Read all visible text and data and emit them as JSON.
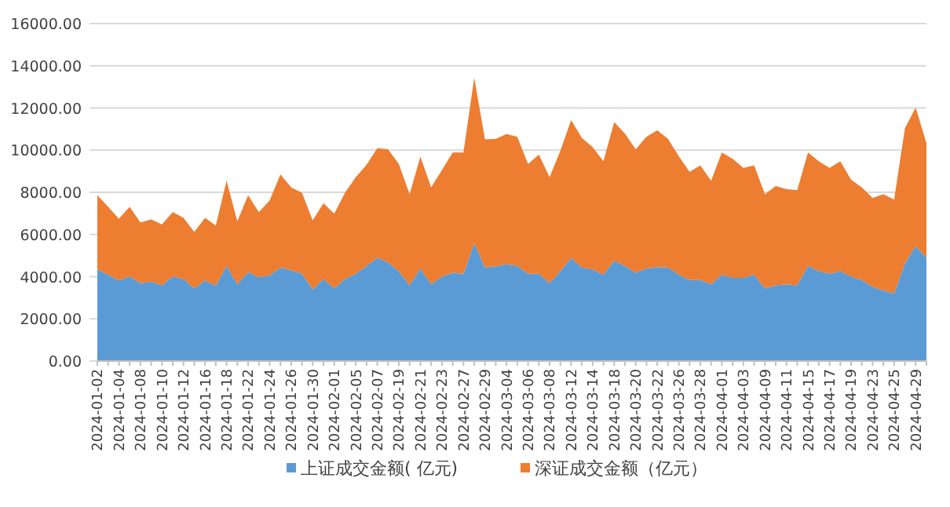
{
  "chart_data": {
    "type": "area",
    "stacked": true,
    "categories": [
      "2024-01-02",
      null,
      "2024-01-04",
      null,
      "2024-01-08",
      null,
      "2024-01-10",
      null,
      "2024-01-12",
      null,
      "2024-01-16",
      null,
      "2024-01-18",
      null,
      "2024-01-22",
      null,
      "2024-01-24",
      null,
      "2024-01-26",
      null,
      "2024-01-30",
      null,
      "2024-02-01",
      null,
      "2024-02-05",
      null,
      "2024-02-07",
      null,
      "2024-02-19",
      null,
      "2024-02-21",
      null,
      "2024-02-23",
      null,
      "2024-02-27",
      null,
      "2024-02-29",
      null,
      "2024-03-04",
      null,
      "2024-03-06",
      null,
      "2024-03-08",
      null,
      "2024-03-12",
      null,
      "2024-03-14",
      null,
      "2024-03-18",
      null,
      "2024-03-20",
      null,
      "2024-03-22",
      null,
      "2024-03-26",
      null,
      "2024-03-28",
      null,
      "2024-04-01",
      null,
      "2024-04-03",
      null,
      "2024-04-09",
      null,
      "2024-04-11",
      null,
      "2024-04-15",
      null,
      "2024-04-17",
      null,
      "2024-04-19",
      null,
      "2024-04-23",
      null,
      "2024-04-25",
      null,
      "2024-04-29",
      null
    ],
    "series": [
      {
        "name": "上证成交金额( 亿元)",
        "color": "#5b9bd5",
        "values": [
          4340,
          4090,
          3820,
          4010,
          3690,
          3770,
          3590,
          4010,
          3890,
          3440,
          3820,
          3570,
          4510,
          3640,
          4210,
          3970,
          4060,
          4440,
          4310,
          4140,
          3400,
          3890,
          3440,
          3890,
          4140,
          4500,
          4900,
          4680,
          4260,
          3590,
          4390,
          3640,
          4010,
          4190,
          4140,
          5580,
          4440,
          4490,
          4590,
          4510,
          4140,
          4140,
          3690,
          4260,
          4880,
          4440,
          4340,
          4090,
          4760,
          4510,
          4190,
          4390,
          4460,
          4440,
          4090,
          3840,
          3840,
          3640,
          4090,
          3940,
          3940,
          4090,
          3440,
          3590,
          3640,
          3590,
          4510,
          4260,
          4140,
          4260,
          4010,
          3840,
          3520,
          3350,
          3200,
          4630,
          5450,
          4880
        ]
      },
      {
        "name": "深证成交金额（亿元）",
        "color": "#ed7d31",
        "values": [
          3520,
          3220,
          2920,
          3300,
          2880,
          2950,
          2880,
          3050,
          2900,
          2680,
          2970,
          2850,
          4040,
          2980,
          3650,
          3090,
          3550,
          4410,
          3920,
          3840,
          3270,
          3590,
          3550,
          4090,
          4580,
          4800,
          5190,
          5360,
          5080,
          4320,
          5300,
          4590,
          5040,
          5700,
          5750,
          7850,
          6070,
          6040,
          6170,
          6120,
          5200,
          5650,
          5030,
          5700,
          6540,
          6140,
          5800,
          5380,
          6570,
          6270,
          5850,
          6240,
          6480,
          6090,
          5620,
          5130,
          5430,
          4910,
          5800,
          5650,
          5210,
          5180,
          4470,
          4710,
          4510,
          4510,
          5380,
          5210,
          5010,
          5210,
          4590,
          4390,
          4210,
          4560,
          4460,
          6400,
          6570,
          5450
        ]
      }
    ],
    "ylim": [
      0,
      16000
    ],
    "yticks": [
      {
        "value": 0,
        "label": "0.00"
      },
      {
        "value": 2000,
        "label": "2000.00"
      },
      {
        "value": 4000,
        "label": "4000.00"
      },
      {
        "value": 6000,
        "label": "6000.00"
      },
      {
        "value": 8000,
        "label": "8000.00"
      },
      {
        "value": 10000,
        "label": "10000.00"
      },
      {
        "value": 12000,
        "label": "12000.00"
      },
      {
        "value": 14000,
        "label": "14000.00"
      },
      {
        "value": 16000,
        "label": "16000.00"
      }
    ],
    "grid": "y",
    "legend": "bottom"
  }
}
